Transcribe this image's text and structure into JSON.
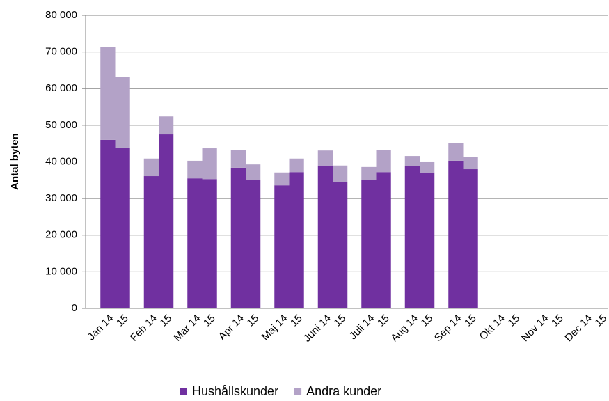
{
  "chart_data": {
    "type": "bar",
    "stacked": true,
    "y_label": "Antal byten",
    "categories": [
      "Jan 14",
      "15",
      "Feb 14",
      "15",
      "Mar 14",
      "15",
      "Apr 14",
      "15",
      "Maj 14",
      "15",
      "Juni 14",
      "15",
      "Juli 14",
      "15",
      "Aug 14",
      "15",
      "Sep 14",
      "15",
      "Okt 14",
      "15",
      "Nov 14",
      "15",
      "Dec 14",
      "15"
    ],
    "series": [
      {
        "name": "Hushållskunder",
        "color": "#7030a0",
        "values": [
          46000,
          43900,
          36100,
          47500,
          35500,
          35300,
          38400,
          35000,
          33600,
          37200,
          39000,
          34400,
          35000,
          37200,
          38800,
          37100,
          40300,
          38000,
          null,
          null,
          null,
          null,
          null,
          null
        ]
      },
      {
        "name": "Andra kunder",
        "color": "#b3a2c7",
        "values": [
          25400,
          19200,
          4800,
          4900,
          4800,
          8400,
          4900,
          4300,
          3500,
          3700,
          4100,
          4600,
          3600,
          6100,
          2800,
          3000,
          4900,
          3400,
          null,
          null,
          null,
          null,
          null,
          null
        ]
      }
    ],
    "ylim": [
      0,
      80000
    ],
    "yticks": [
      {
        "value": 0,
        "label": "0"
      },
      {
        "value": 10000,
        "label": "10 000"
      },
      {
        "value": 20000,
        "label": "20 000"
      },
      {
        "value": 30000,
        "label": "30 000"
      },
      {
        "value": 40000,
        "label": "40 000"
      },
      {
        "value": 50000,
        "label": "50 000"
      },
      {
        "value": 60000,
        "label": "60 000"
      },
      {
        "value": 70000,
        "label": "70 000"
      },
      {
        "value": 80000,
        "label": "80 000"
      }
    ],
    "grid": true,
    "legend": "bottom"
  }
}
